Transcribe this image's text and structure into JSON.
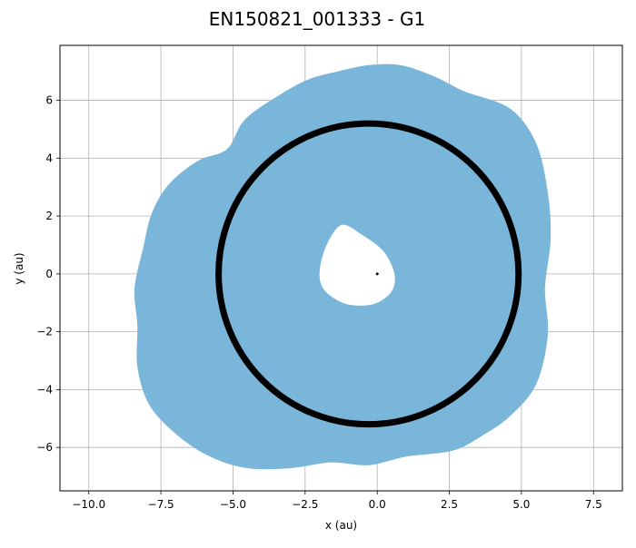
{
  "chart_data": {
    "type": "line",
    "title": "EN150821_001333 - G1",
    "xlabel": "x (au)",
    "ylabel": "y (au)",
    "xlim": [
      -11.0,
      8.5
    ],
    "ylim": [
      -7.5,
      7.9
    ],
    "x_ticks": [
      -10.0,
      -7.5,
      -5.0,
      -2.5,
      0.0,
      2.5,
      5.0,
      7.5
    ],
    "x_tick_labels": [
      "−10.0",
      "−7.5",
      "−5.0",
      "−2.5",
      "0.0",
      "2.5",
      "5.0",
      "7.5"
    ],
    "y_ticks": [
      -6,
      -4,
      -2,
      0,
      2,
      4,
      6
    ],
    "y_tick_labels": [
      "−6",
      "−4",
      "−2",
      "0",
      "2",
      "4",
      "6"
    ],
    "grid": true,
    "series": [
      {
        "color": "#7ab5da",
        "x": [
          -0.3,
          0.8,
          2.0,
          3.0,
          4.6,
          5.5,
          5.9,
          6.0,
          5.8,
          5.9,
          5.5,
          4.6,
          3.6,
          2.6,
          1.0,
          -0.3,
          -1.6,
          -3.0,
          -4.5,
          -5.8,
          -7.0,
          -7.9,
          -8.3,
          -8.3,
          -8.4,
          -8.1,
          -7.8,
          -7.2,
          -6.2,
          -5.2,
          -4.6,
          -3.5,
          -2.4,
          -1.3
        ],
        "y": [
          7.2,
          7.2,
          6.8,
          6.3,
          5.7,
          4.5,
          2.8,
          1.2,
          -0.5,
          -2.1,
          -3.8,
          -4.9,
          -5.6,
          -6.1,
          -6.3,
          -6.6,
          -6.5,
          -6.7,
          -6.7,
          -6.3,
          -5.5,
          -4.5,
          -3.2,
          -1.8,
          -0.5,
          0.9,
          2.1,
          3.1,
          3.9,
          4.3,
          5.3,
          6.1,
          6.7,
          7.0
        ]
      },
      {
        "color": "#000000",
        "shape": "ellipse",
        "center": [
          -0.3,
          0.0
        ],
        "radius": [
          5.2,
          5.2
        ]
      }
    ],
    "inner_gap": {
      "x": [
        -1.2,
        -0.6,
        0.2,
        0.6,
        0.5,
        0.0,
        -0.6,
        -1.2,
        -1.8,
        -2.0,
        -1.9,
        -1.6
      ],
      "y": [
        1.7,
        1.4,
        0.8,
        0.0,
        -0.6,
        -1.0,
        -1.1,
        -1.0,
        -0.6,
        -0.1,
        0.6,
        1.3
      ]
    },
    "marker": {
      "x": 0.0,
      "y": 0.0
    }
  }
}
